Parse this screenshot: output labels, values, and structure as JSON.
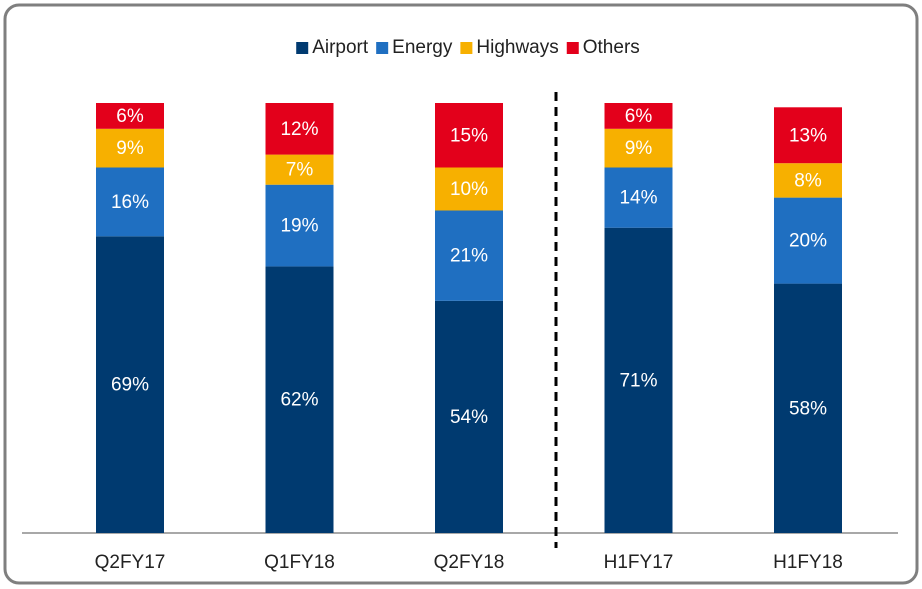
{
  "chart_data": {
    "type": "stacked_bar",
    "categories": [
      "Q2FY17",
      "Q1FY18",
      "Q2FY18",
      "H1FY17",
      "H1FY18"
    ],
    "series": [
      {
        "name": "Airport",
        "color": "#003a70",
        "values": [
          69,
          62,
          54,
          71,
          58
        ],
        "value_labels": [
          "69%",
          "62%",
          "54%",
          "71%",
          "58%"
        ]
      },
      {
        "name": "Energy",
        "color": "#1f6fc1",
        "values": [
          16,
          19,
          21,
          14,
          20
        ],
        "value_labels": [
          "16%",
          "19%",
          "21%",
          "14%",
          "20%"
        ]
      },
      {
        "name": "Highways",
        "color": "#f7b000",
        "values": [
          9,
          7,
          10,
          9,
          8
        ],
        "value_labels": [
          "9%",
          "7%",
          "10%",
          "9%",
          "8%"
        ]
      },
      {
        "name": "Others",
        "color": "#e3001b",
        "values": [
          6,
          12,
          15,
          6,
          13
        ],
        "value_labels": [
          "6%",
          "12%",
          "15%",
          "6%",
          "13%"
        ]
      }
    ],
    "ylim": [
      0,
      100
    ],
    "legend": "top"
  }
}
